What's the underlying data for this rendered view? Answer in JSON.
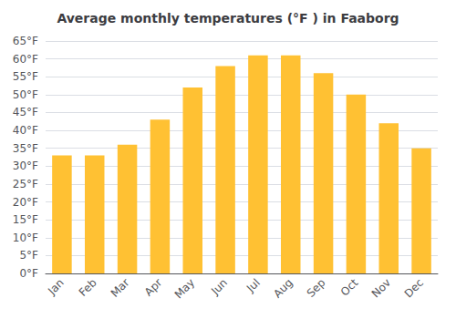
{
  "chart_data": {
    "type": "bar",
    "title": "Average monthly temperatures (°F ) in Faaborg",
    "categories": [
      "Jan",
      "Feb",
      "Mar",
      "Apr",
      "May",
      "Jun",
      "Jul",
      "Aug",
      "Sep",
      "Oct",
      "Nov",
      "Dec"
    ],
    "values": [
      33,
      33,
      36,
      43,
      52,
      58,
      61,
      61,
      56,
      50,
      42,
      35
    ],
    "color": "#FFC133",
    "ylim": [
      0,
      65
    ],
    "yticks": [
      {
        "value": 0,
        "label": "0°F"
      },
      {
        "value": 5,
        "label": "5°F"
      },
      {
        "value": 10,
        "label": "10°F"
      },
      {
        "value": 15,
        "label": "15°F"
      },
      {
        "value": 20,
        "label": "20°F"
      },
      {
        "value": 25,
        "label": "25°F"
      },
      {
        "value": 30,
        "label": "30°F"
      },
      {
        "value": 35,
        "label": "35°F"
      },
      {
        "value": 40,
        "label": "40°F"
      },
      {
        "value": 45,
        "label": "45°F"
      },
      {
        "value": 50,
        "label": "50°F"
      },
      {
        "value": 55,
        "label": "55°F"
      },
      {
        "value": 60,
        "label": "60°F"
      },
      {
        "value": 65,
        "label": "65°F"
      }
    ],
    "grid": true
  }
}
